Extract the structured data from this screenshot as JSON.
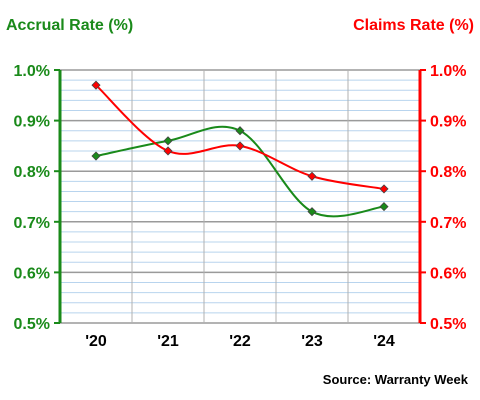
{
  "chart_data": {
    "type": "line",
    "categories": [
      "'20",
      "'21",
      "'22",
      "'23",
      "'24"
    ],
    "y_left": {
      "title": "Accrual Rate (%)",
      "range": [
        0.5,
        1.0
      ],
      "ticks": [
        "0.5%",
        "0.6%",
        "0.7%",
        "0.8%",
        "0.9%",
        "1.0%"
      ],
      "color": "#1a8a1a"
    },
    "y_right": {
      "title": "Claims Rate (%)",
      "range": [
        0.5,
        1.0
      ],
      "ticks": [
        "0.5%",
        "0.6%",
        "0.7%",
        "0.8%",
        "0.9%",
        "1.0%"
      ],
      "color": "#ff0000"
    },
    "series": [
      {
        "axis": "left",
        "color": "#1a8a1a",
        "values": [
          0.83,
          0.86,
          0.88,
          0.72,
          0.73
        ]
      },
      {
        "axis": "right",
        "color": "#ff0000",
        "values": [
          0.97,
          0.84,
          0.85,
          0.79,
          0.765
        ]
      }
    ],
    "grid": true,
    "source": "Source: Warranty Week"
  }
}
